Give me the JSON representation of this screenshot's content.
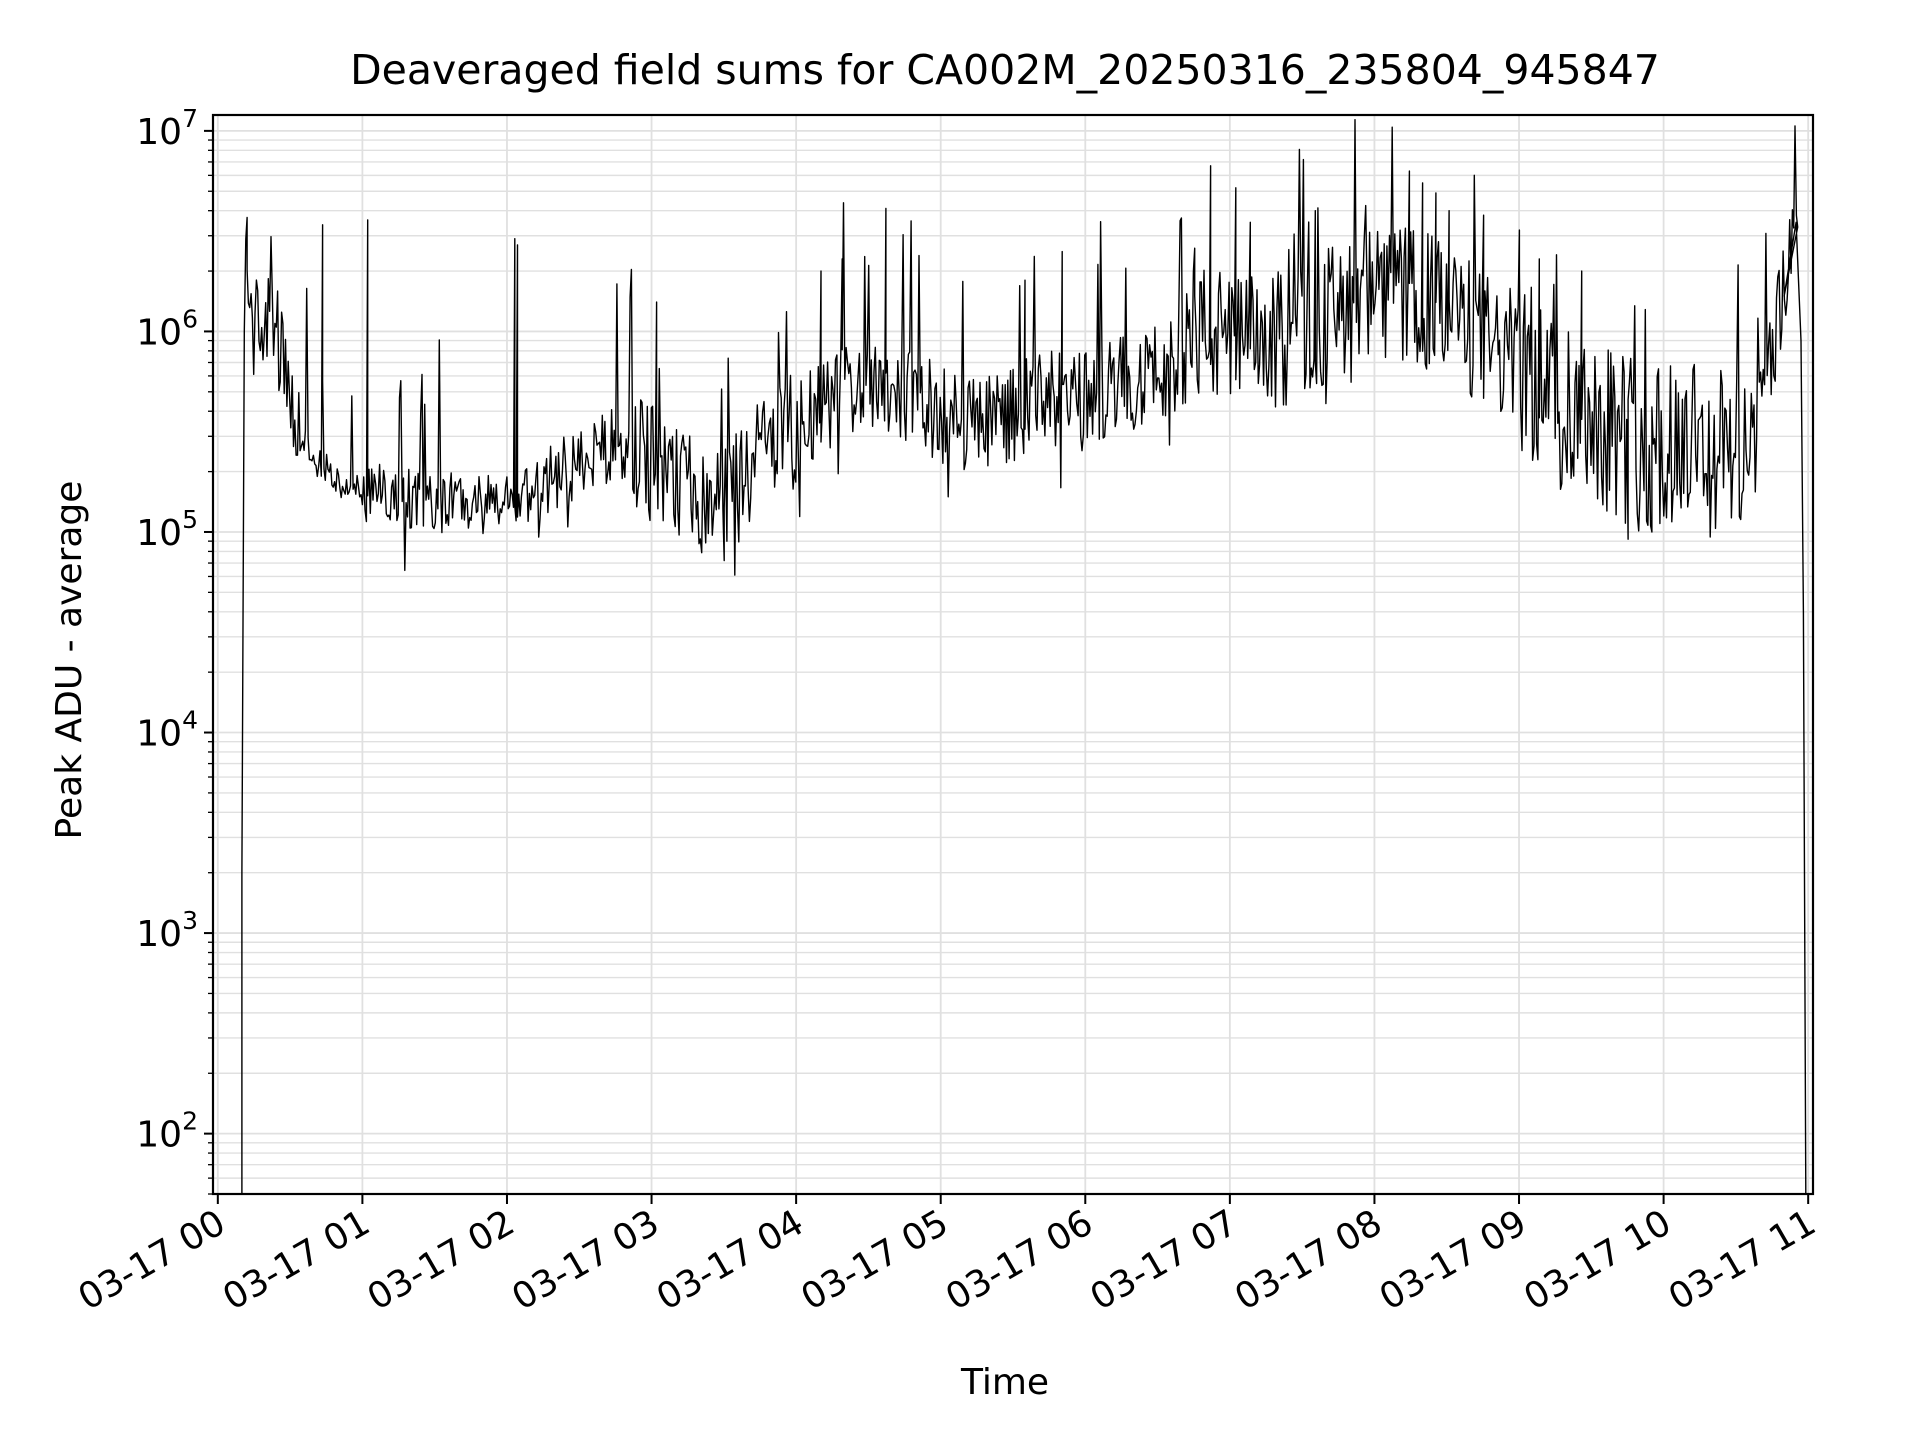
{
  "chart_data": {
    "type": "line",
    "title": "Deaveraged field sums for CA002M_20250316_235804_945847",
    "xlabel": "Time",
    "ylabel": "Peak ADU - average",
    "yscale": "log",
    "ylim": [
      50,
      12000000
    ],
    "xlim": [
      "03-16 23:58",
      "03-17 11:02"
    ],
    "grid": "major and minor",
    "line_color": "#000000",
    "grid_color": "#e0e0e0",
    "x_ticks": [
      "03-17 00",
      "03-17 01",
      "03-17 02",
      "03-17 03",
      "03-17 04",
      "03-17 05",
      "03-17 06",
      "03-17 07",
      "03-17 08",
      "03-17 09",
      "03-17 10",
      "03-17 11"
    ],
    "y_ticks": [
      {
        "base": "10",
        "exp": "2",
        "value": 100
      },
      {
        "base": "10",
        "exp": "3",
        "value": 1000
      },
      {
        "base": "10",
        "exp": "4",
        "value": 10000
      },
      {
        "base": "10",
        "exp": "5",
        "value": 100000
      },
      {
        "base": "10",
        "exp": "6",
        "value": 1000000
      },
      {
        "base": "10",
        "exp": "7",
        "value": 10000000
      }
    ],
    "series": [
      {
        "points": [
          [
            "03-17 00:10",
            50
          ],
          [
            "03-17 00:10",
            2000
          ],
          [
            "03-17 00:11",
            1000000
          ],
          [
            "03-17 00:12",
            2500000
          ],
          [
            "03-17 00:14",
            1000000
          ],
          [
            "03-17 00:20",
            1200000
          ],
          [
            "03-17 00:25",
            900000
          ],
          [
            "03-17 00:30",
            400000
          ],
          [
            "03-17 00:35",
            300000
          ],
          [
            "03-17 00:40",
            230000
          ],
          [
            "03-17 00:50",
            180000
          ],
          [
            "03-17 01:00",
            160000
          ],
          [
            "03-17 01:15",
            150000
          ],
          [
            "03-17 01:30",
            140000
          ],
          [
            "03-17 01:45",
            140000
          ],
          [
            "03-17 02:00",
            135000
          ],
          [
            "03-17 02:15",
            170000
          ],
          [
            "03-17 02:30",
            220000
          ],
          [
            "03-17 02:45",
            280000
          ],
          [
            "03-17 03:00",
            220000
          ],
          [
            "03-17 03:15",
            160000
          ],
          [
            "03-17 03:30",
            140000
          ],
          [
            "03-17 03:45",
            250000
          ],
          [
            "03-17 04:00",
            320000
          ],
          [
            "03-17 04:15",
            450000
          ],
          [
            "03-17 04:30",
            600000
          ],
          [
            "03-17 04:45",
            500000
          ],
          [
            "03-17 05:00",
            380000
          ],
          [
            "03-17 05:15",
            350000
          ],
          [
            "03-17 05:30",
            400000
          ],
          [
            "03-17 05:45",
            450000
          ],
          [
            "03-17 06:00",
            450000
          ],
          [
            "03-17 06:15",
            550000
          ],
          [
            "03-17 06:30",
            600000
          ],
          [
            "03-17 06:45",
            1000000
          ],
          [
            "03-17 07:00",
            900000
          ],
          [
            "03-17 07:15",
            850000
          ],
          [
            "03-17 07:30",
            1000000
          ],
          [
            "03-17 07:45",
            1300000
          ],
          [
            "03-17 08:00",
            1500000
          ],
          [
            "03-17 08:15",
            1500000
          ],
          [
            "03-17 08:30",
            1300000
          ],
          [
            "03-17 08:45",
            900000
          ],
          [
            "03-17 09:00",
            700000
          ],
          [
            "03-17 09:15",
            450000
          ],
          [
            "03-17 09:30",
            400000
          ],
          [
            "03-17 09:45",
            300000
          ],
          [
            "03-17 10:00",
            250000
          ],
          [
            "03-17 10:15",
            250000
          ],
          [
            "03-17 10:30",
            240000
          ],
          [
            "03-17 10:40",
            450000
          ],
          [
            "03-17 10:50",
            1500000
          ],
          [
            "03-17 10:55",
            3500000
          ],
          [
            "03-17 10:57",
            900000
          ],
          [
            "03-17 10:58",
            40000
          ],
          [
            "03-17 10:59",
            50
          ]
        ],
        "spikes": [
          [
            "03-17 00:12",
            3700000
          ],
          [
            "03-17 00:43",
            3400000
          ],
          [
            "03-17 01:02",
            3600000
          ],
          [
            "03-17 02:03",
            2900000
          ],
          [
            "03-17 02:04",
            2700000
          ],
          [
            "03-17 03:02",
            1400000
          ],
          [
            "03-17 03:30",
            72000
          ],
          [
            "03-17 04:10",
            2000000
          ],
          [
            "03-17 04:19",
            2300000
          ],
          [
            "03-17 04:37",
            4100000
          ],
          [
            "03-17 05:35",
            1800000
          ],
          [
            "03-17 05:50",
            2500000
          ],
          [
            "03-17 06:45",
            2600000
          ],
          [
            "03-17 06:52",
            6700000
          ],
          [
            "03-17 07:02",
            5200000
          ],
          [
            "03-17 07:08",
            3500000
          ],
          [
            "03-17 07:35",
            4000000
          ],
          [
            "03-17 08:14",
            6300000
          ],
          [
            "03-17 08:20",
            5500000
          ],
          [
            "03-17 08:25",
            4900000
          ],
          [
            "03-17 08:31",
            4000000
          ],
          [
            "03-17 08:45",
            3800000
          ],
          [
            "03-17 09:00",
            3200000
          ],
          [
            "03-17 09:08",
            2300000
          ],
          [
            "03-17 09:26",
            2000000
          ],
          [
            "03-17 09:45",
            92000
          ],
          [
            "03-17 09:55",
            100000
          ]
        ]
      }
    ]
  }
}
